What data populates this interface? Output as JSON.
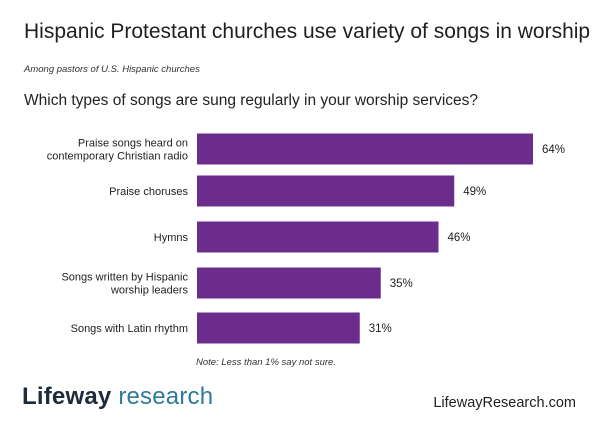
{
  "header": {
    "title": "Hispanic Protestant churches use variety of songs in worship",
    "subtitle": "Among pastors of U.S. Hispanic churches",
    "question": "Which types of songs are sung regularly in your worship services?"
  },
  "footer": {
    "note": "Note: Less than 1% say not sure.",
    "logo_word1": "Lifeway",
    "logo_word2": "research",
    "site": "LifewayResearch.com"
  },
  "colors": {
    "bar": "#6b2c8c",
    "logo_dark": "#1e2b3b",
    "logo_accent": "#2d7a9a"
  },
  "chart_data": {
    "type": "bar",
    "orientation": "horizontal",
    "categories": [
      [
        "Praise songs heard on",
        "contemporary Christian radio"
      ],
      [
        "Praise choruses"
      ],
      [
        "Hymns"
      ],
      [
        "Songs written by Hispanic",
        "worship leaders"
      ],
      [
        "Songs with Latin rhythm"
      ]
    ],
    "values": [
      64,
      49,
      46,
      35,
      31
    ],
    "value_labels": [
      "64%",
      "49%",
      "46%",
      "35%",
      "31%"
    ],
    "unit": "%",
    "grid": false,
    "xlim": [
      0,
      64
    ]
  }
}
